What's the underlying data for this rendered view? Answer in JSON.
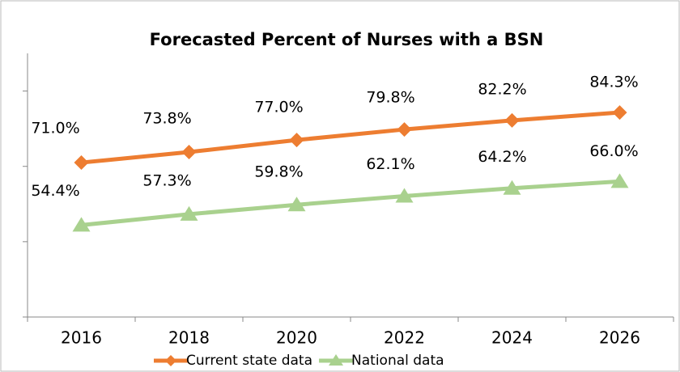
{
  "chart_data": {
    "type": "line",
    "title": "Forecasted Percent of Nurses with a BSN",
    "categories": [
      "2016",
      "2018",
      "2020",
      "2022",
      "2024",
      "2026"
    ],
    "series": [
      {
        "name": "Current state data",
        "color": "#ED7D31",
        "marker": "diamond",
        "values": [
          71.0,
          73.8,
          77.0,
          79.8,
          82.2,
          84.3
        ],
        "value_labels": [
          "71.0%",
          "73.8%",
          "77.0%",
          "79.8%",
          "82.2%",
          "84.3%"
        ]
      },
      {
        "name": "National data",
        "color": "#A9D18E",
        "marker": "triangle",
        "values": [
          54.4,
          57.3,
          59.8,
          62.1,
          64.2,
          66.0
        ],
        "value_labels": [
          "54.4%",
          "57.3%",
          "59.8%",
          "62.1%",
          "64.2%",
          "66.0%"
        ]
      }
    ],
    "ylim": [
      30,
      100
    ],
    "yticks": [
      30,
      50,
      70,
      90
    ],
    "legend": "bottom"
  }
}
